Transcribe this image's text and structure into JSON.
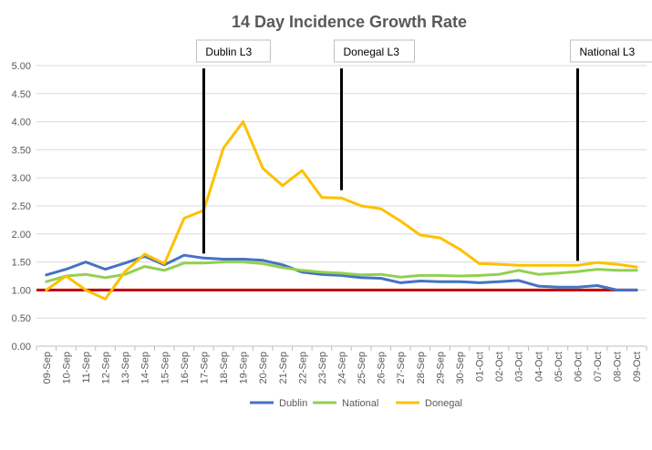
{
  "chart_data": {
    "type": "line",
    "title": "14 Day Incidence Growth Rate",
    "categories": [
      "09-Sep",
      "10-Sep",
      "11-Sep",
      "12-Sep",
      "13-Sep",
      "14-Sep",
      "15-Sep",
      "16-Sep",
      "17-Sep",
      "18-Sep",
      "19-Sep",
      "20-Sep",
      "21-Sep",
      "22-Sep",
      "23-Sep",
      "24-Sep",
      "25-Sep",
      "26-Sep",
      "27-Sep",
      "28-Sep",
      "29-Sep",
      "30-Sep",
      "01-Oct",
      "02-Oct",
      "03-Oct",
      "04-Oct",
      "05-Oct",
      "06-Oct",
      "07-Oct",
      "08-Oct",
      "09-Oct"
    ],
    "y_ticks": [
      "0.00",
      "0.50",
      "1.00",
      "1.50",
      "2.00",
      "2.50",
      "3.00",
      "3.50",
      "4.00",
      "4.50",
      "5.00"
    ],
    "ylim": [
      0,
      5
    ],
    "grid": true,
    "legend_position": "bottom",
    "reference_line": {
      "value": 1.0,
      "color": "#C00000"
    },
    "series": [
      {
        "name": "Dublin",
        "color": "#4472C4",
        "values": [
          1.27,
          1.37,
          1.5,
          1.37,
          1.48,
          1.6,
          1.45,
          1.62,
          1.57,
          1.55,
          1.55,
          1.53,
          1.45,
          1.32,
          1.28,
          1.26,
          1.22,
          1.21,
          1.13,
          1.16,
          1.15,
          1.15,
          1.13,
          1.15,
          1.17,
          1.07,
          1.05,
          1.05,
          1.08,
          1.0,
          1.0
        ]
      },
      {
        "name": "National",
        "color": "#92D050",
        "values": [
          1.15,
          1.25,
          1.28,
          1.22,
          1.28,
          1.42,
          1.35,
          1.48,
          1.48,
          1.5,
          1.5,
          1.47,
          1.4,
          1.35,
          1.32,
          1.3,
          1.27,
          1.28,
          1.23,
          1.26,
          1.26,
          1.25,
          1.26,
          1.28,
          1.35,
          1.28,
          1.3,
          1.33,
          1.37,
          1.35,
          1.35
        ]
      },
      {
        "name": "Donegal",
        "color": "#FFC000",
        "values": [
          1.0,
          1.25,
          1.0,
          0.84,
          1.33,
          1.64,
          1.47,
          2.28,
          2.42,
          3.53,
          4.0,
          3.17,
          2.86,
          3.13,
          2.65,
          2.64,
          2.5,
          2.45,
          2.23,
          1.98,
          1.93,
          1.73,
          1.47,
          1.46,
          1.44,
          1.44,
          1.44,
          1.44,
          1.49,
          1.46,
          1.41
        ]
      }
    ],
    "annotations": [
      {
        "label": "Dublin L3",
        "category": "17-Sep",
        "y_top": 4.95,
        "y_bottom": 1.65
      },
      {
        "label": "Donegal L3",
        "category": "24-Sep",
        "y_top": 4.95,
        "y_bottom": 2.78
      },
      {
        "label": "National L3",
        "category": "06-Oct",
        "y_top": 4.95,
        "y_bottom": 1.52
      }
    ]
  }
}
